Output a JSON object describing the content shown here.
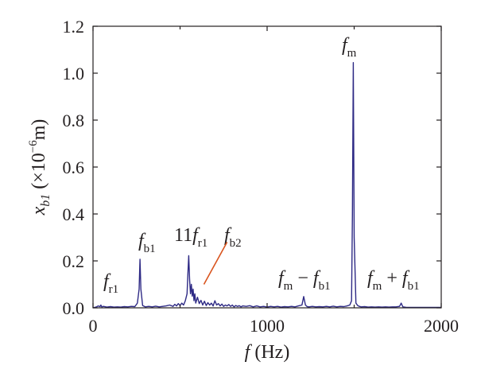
{
  "chart_data": {
    "type": "line",
    "xlabel": "f (Hz)",
    "ylabel": "x_b1 (×10^-6 m)",
    "xlim": [
      0,
      2000
    ],
    "ylim": [
      0,
      1.2
    ],
    "xticks": [
      0,
      1000,
      2000
    ],
    "yticks": [
      0.0,
      0.2,
      0.4,
      0.6,
      0.8,
      1.0,
      1.2
    ],
    "x_tick_labels": [
      "0",
      "1000",
      "2000"
    ],
    "y_tick_labels": [
      "0.0",
      "0.2",
      "0.4",
      "0.6",
      "0.8",
      "1.0",
      "1.2"
    ],
    "grid": false,
    "colors": {
      "series": "#2e2a85",
      "pointer": "#d9541e",
      "axis": "#231f20"
    },
    "series": [
      {
        "x": [
          0,
          20,
          30,
          40,
          45,
          50,
          60,
          80,
          100,
          120,
          140,
          160,
          180,
          200,
          220,
          240,
          255,
          265,
          270,
          275,
          285,
          300,
          320,
          340,
          360,
          380,
          400,
          420,
          440,
          460,
          470,
          480,
          490,
          500,
          510,
          520,
          530,
          540,
          545,
          550,
          555,
          560,
          565,
          570,
          575,
          580,
          585,
          590,
          600,
          610,
          620,
          630,
          640,
          650,
          660,
          670,
          680,
          690,
          700,
          710,
          720,
          730,
          740,
          750,
          760,
          770,
          780,
          790,
          800,
          810,
          820,
          830,
          840,
          850,
          860,
          880,
          900,
          920,
          940,
          960,
          980,
          1000,
          1020,
          1040,
          1060,
          1080,
          1100,
          1120,
          1140,
          1160,
          1180,
          1200,
          1210,
          1220,
          1230,
          1240,
          1260,
          1280,
          1300,
          1320,
          1340,
          1360,
          1380,
          1400,
          1420,
          1440,
          1460,
          1475,
          1485,
          1490,
          1495,
          1500,
          1510,
          1520,
          1530,
          1540,
          1560,
          1580,
          1600,
          1620,
          1640,
          1660,
          1680,
          1700,
          1720,
          1740,
          1760,
          1765,
          1770,
          1775,
          1780,
          1800,
          1850,
          1900,
          1950,
          2000
        ],
        "y": [
          0.0,
          0.004,
          0.008,
          0.005,
          0.012,
          0.004,
          0.006,
          0.003,
          0.005,
          0.003,
          0.004,
          0.003,
          0.005,
          0.004,
          0.006,
          0.005,
          0.02,
          0.08,
          0.207,
          0.08,
          0.01,
          0.004,
          0.006,
          0.004,
          0.007,
          0.004,
          0.006,
          0.008,
          0.012,
          0.006,
          0.015,
          0.008,
          0.018,
          0.01,
          0.02,
          0.012,
          0.03,
          0.06,
          0.15,
          0.222,
          0.12,
          0.06,
          0.1,
          0.05,
          0.08,
          0.03,
          0.06,
          0.02,
          0.045,
          0.018,
          0.032,
          0.012,
          0.028,
          0.01,
          0.022,
          0.012,
          0.02,
          0.008,
          0.03,
          0.012,
          0.018,
          0.008,
          0.016,
          0.006,
          0.012,
          0.008,
          0.014,
          0.006,
          0.012,
          0.004,
          0.01,
          0.006,
          0.009,
          0.004,
          0.008,
          0.006,
          0.009,
          0.004,
          0.008,
          0.004,
          0.006,
          0.003,
          0.006,
          0.004,
          0.006,
          0.003,
          0.005,
          0.004,
          0.006,
          0.004,
          0.008,
          0.012,
          0.048,
          0.012,
          0.005,
          0.004,
          0.006,
          0.004,
          0.005,
          0.004,
          0.006,
          0.004,
          0.007,
          0.004,
          0.006,
          0.005,
          0.008,
          0.012,
          0.03,
          0.4,
          1.045,
          0.3,
          0.02,
          0.01,
          0.006,
          0.004,
          0.005,
          0.003,
          0.004,
          0.003,
          0.004,
          0.003,
          0.004,
          0.003,
          0.004,
          0.004,
          0.006,
          0.012,
          0.02,
          0.012,
          0.004,
          0.002,
          0.002,
          0.002,
          0.002,
          0.002
        ]
      }
    ],
    "annotations": [
      {
        "text": "f",
        "sub": "r1",
        "prefix": "",
        "suffix": ""
      },
      {
        "text": "f",
        "sub": "b1",
        "prefix": "",
        "suffix": ""
      },
      {
        "text": "f",
        "sub": "r1",
        "prefix": "11",
        "suffix": ""
      },
      {
        "text": "f",
        "sub": "b2",
        "prefix": "",
        "suffix": ""
      },
      {
        "text": "f",
        "sub": "m",
        "prefix": "",
        "suffix": ""
      },
      {
        "text": "f",
        "sub": "m",
        "prefix": "",
        "suffix": " − ",
        "text2": "f",
        "sub2": "b1"
      },
      {
        "text": "f",
        "sub": "m",
        "prefix": "",
        "suffix": " + ",
        "text2": "f",
        "sub2": "b1"
      }
    ],
    "pointer": {
      "from": [
        637,
        0.1
      ],
      "to": [
        770,
        0.28
      ]
    }
  }
}
